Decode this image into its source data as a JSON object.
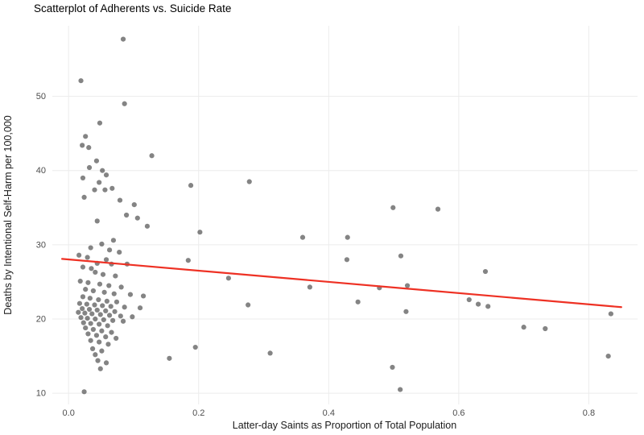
{
  "chart_data": {
    "type": "scatter",
    "title": "Scatterplot of Adherents vs. Suicide Rate",
    "xlabel": "Latter-day Saints as Proportion of Total Population",
    "ylabel": "Deaths by Intentional Self-Harm per 100,000",
    "xlim": [
      -0.025,
      0.875
    ],
    "ylim": [
      8.5,
      59.5
    ],
    "xticks": [
      [
        0.0,
        "0.0"
      ],
      [
        0.2,
        "0.2"
      ],
      [
        0.4,
        "0.4"
      ],
      [
        0.6,
        "0.6"
      ],
      [
        0.8,
        "0.8"
      ]
    ],
    "yticks": [
      [
        10,
        "10"
      ],
      [
        20,
        "20"
      ],
      [
        30,
        "30"
      ],
      [
        40,
        "40"
      ],
      [
        50,
        "50"
      ]
    ],
    "grid": true,
    "legend": false,
    "point_color": "#1f1f1f",
    "point_opacity": 0.55,
    "trend": {
      "type": "linear",
      "x1": -0.01,
      "y1": 28.1,
      "x2": 0.85,
      "y2": 21.6,
      "color": "#ee3124"
    },
    "points": [
      [
        0.019,
        52.1
      ],
      [
        0.084,
        57.7
      ],
      [
        0.086,
        49.0
      ],
      [
        0.048,
        46.4
      ],
      [
        0.026,
        44.6
      ],
      [
        0.021,
        43.4
      ],
      [
        0.031,
        43.1
      ],
      [
        0.128,
        42.0
      ],
      [
        0.043,
        41.3
      ],
      [
        0.032,
        40.4
      ],
      [
        0.052,
        40.0
      ],
      [
        0.058,
        39.4
      ],
      [
        0.022,
        39.0
      ],
      [
        0.047,
        38.4
      ],
      [
        0.278,
        38.5
      ],
      [
        0.188,
        38.0
      ],
      [
        0.04,
        37.4
      ],
      [
        0.056,
        37.4
      ],
      [
        0.067,
        37.6
      ],
      [
        0.024,
        36.4
      ],
      [
        0.079,
        36.0
      ],
      [
        0.101,
        35.4
      ],
      [
        0.499,
        35.0
      ],
      [
        0.568,
        34.8
      ],
      [
        0.089,
        34.0
      ],
      [
        0.106,
        33.6
      ],
      [
        0.044,
        33.2
      ],
      [
        0.121,
        32.5
      ],
      [
        0.202,
        31.7
      ],
      [
        0.36,
        31.0
      ],
      [
        0.429,
        31.0
      ],
      [
        0.069,
        30.6
      ],
      [
        0.051,
        30.1
      ],
      [
        0.034,
        29.6
      ],
      [
        0.063,
        29.3
      ],
      [
        0.078,
        29.0
      ],
      [
        0.016,
        28.6
      ],
      [
        0.029,
        28.3
      ],
      [
        0.511,
        28.5
      ],
      [
        0.428,
        28.0
      ],
      [
        0.184,
        27.9
      ],
      [
        0.058,
        28.0
      ],
      [
        0.044,
        27.5
      ],
      [
        0.066,
        27.4
      ],
      [
        0.09,
        27.4
      ],
      [
        0.022,
        27.0
      ],
      [
        0.035,
        26.8
      ],
      [
        0.641,
        26.4
      ],
      [
        0.041,
        26.3
      ],
      [
        0.053,
        26.0
      ],
      [
        0.072,
        25.8
      ],
      [
        0.246,
        25.5
      ],
      [
        0.018,
        25.1
      ],
      [
        0.03,
        24.9
      ],
      [
        0.048,
        24.7
      ],
      [
        0.062,
        24.5
      ],
      [
        0.081,
        24.3
      ],
      [
        0.371,
        24.3
      ],
      [
        0.478,
        24.2
      ],
      [
        0.521,
        24.5
      ],
      [
        0.026,
        24.0
      ],
      [
        0.038,
        23.8
      ],
      [
        0.055,
        23.6
      ],
      [
        0.07,
        23.4
      ],
      [
        0.095,
        23.3
      ],
      [
        0.115,
        23.1
      ],
      [
        0.022,
        23.0
      ],
      [
        0.033,
        22.8
      ],
      [
        0.046,
        22.6
      ],
      [
        0.059,
        22.4
      ],
      [
        0.074,
        22.3
      ],
      [
        0.445,
        22.3
      ],
      [
        0.616,
        22.6
      ],
      [
        0.017,
        22.1
      ],
      [
        0.028,
        22.0
      ],
      [
        0.04,
        21.9
      ],
      [
        0.052,
        21.8
      ],
      [
        0.63,
        22.0
      ],
      [
        0.276,
        21.9
      ],
      [
        0.065,
        21.7
      ],
      [
        0.086,
        21.6
      ],
      [
        0.11,
        21.5
      ],
      [
        0.021,
        21.4
      ],
      [
        0.032,
        21.3
      ],
      [
        0.044,
        21.2
      ],
      [
        0.645,
        21.7
      ],
      [
        0.057,
        21.1
      ],
      [
        0.071,
        21.0
      ],
      [
        0.519,
        21.0
      ],
      [
        0.834,
        20.7
      ],
      [
        0.015,
        20.9
      ],
      [
        0.025,
        20.8
      ],
      [
        0.036,
        20.7
      ],
      [
        0.049,
        20.6
      ],
      [
        0.063,
        20.5
      ],
      [
        0.08,
        20.4
      ],
      [
        0.098,
        20.3
      ],
      [
        0.019,
        20.2
      ],
      [
        0.029,
        20.1
      ],
      [
        0.041,
        20.0
      ],
      [
        0.054,
        19.9
      ],
      [
        0.068,
        19.8
      ],
      [
        0.084,
        19.7
      ],
      [
        0.023,
        19.5
      ],
      [
        0.034,
        19.4
      ],
      [
        0.047,
        19.3
      ],
      [
        0.06,
        19.1
      ],
      [
        0.7,
        18.9
      ],
      [
        0.733,
        18.7
      ],
      [
        0.026,
        18.8
      ],
      [
        0.038,
        18.6
      ],
      [
        0.051,
        18.4
      ],
      [
        0.066,
        18.2
      ],
      [
        0.03,
        18.0
      ],
      [
        0.043,
        17.8
      ],
      [
        0.057,
        17.6
      ],
      [
        0.073,
        17.4
      ],
      [
        0.034,
        17.1
      ],
      [
        0.047,
        16.9
      ],
      [
        0.061,
        16.6
      ],
      [
        0.195,
        16.2
      ],
      [
        0.037,
        16.0
      ],
      [
        0.051,
        15.7
      ],
      [
        0.31,
        15.4
      ],
      [
        0.041,
        15.2
      ],
      [
        0.155,
        14.7
      ],
      [
        0.045,
        14.4
      ],
      [
        0.058,
        14.1
      ],
      [
        0.83,
        15.0
      ],
      [
        0.498,
        13.5
      ],
      [
        0.049,
        13.3
      ],
      [
        0.51,
        10.5
      ],
      [
        0.024,
        10.2
      ]
    ]
  }
}
